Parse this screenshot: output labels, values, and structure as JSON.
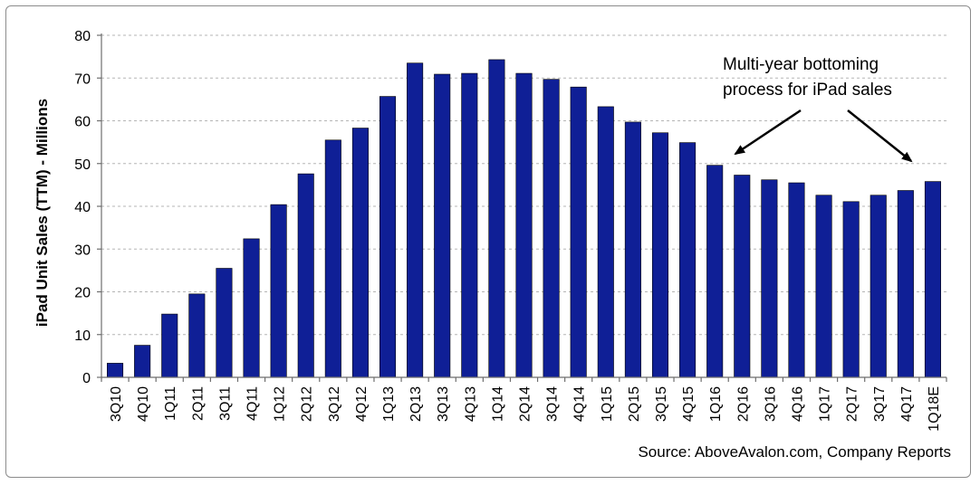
{
  "chart_data": {
    "type": "bar",
    "title": "",
    "xlabel": "",
    "ylabel": "iPad Unit Sales (TTM) - Millions",
    "ylim": [
      0,
      80
    ],
    "yticks": [
      0,
      10,
      20,
      30,
      40,
      50,
      60,
      70,
      80
    ],
    "grid": true,
    "bar_color": "#0f1f96",
    "categories": [
      "3Q10",
      "4Q10",
      "1Q11",
      "2Q11",
      "3Q11",
      "4Q11",
      "1Q12",
      "2Q12",
      "3Q12",
      "4Q12",
      "1Q13",
      "2Q13",
      "3Q13",
      "4Q13",
      "1Q14",
      "2Q14",
      "3Q14",
      "4Q14",
      "1Q15",
      "2Q15",
      "3Q15",
      "4Q15",
      "1Q16",
      "2Q16",
      "3Q16",
      "4Q16",
      "1Q17",
      "2Q17",
      "3Q17",
      "4Q17",
      "1Q18E"
    ],
    "values": [
      3.3,
      7.5,
      14.8,
      19.5,
      25.5,
      32.4,
      40.4,
      47.6,
      55.5,
      58.3,
      65.7,
      73.5,
      70.9,
      71.1,
      74.3,
      71.1,
      69.7,
      67.9,
      63.3,
      59.7,
      57.2,
      54.9,
      49.6,
      47.3,
      46.2,
      45.5,
      42.6,
      41.1,
      42.6,
      43.7,
      45.8
    ],
    "annotation": {
      "lines": [
        "Multi-year bottoming",
        "process for iPad sales"
      ]
    },
    "source": "Source: AboveAvalon.com, Company Reports"
  }
}
